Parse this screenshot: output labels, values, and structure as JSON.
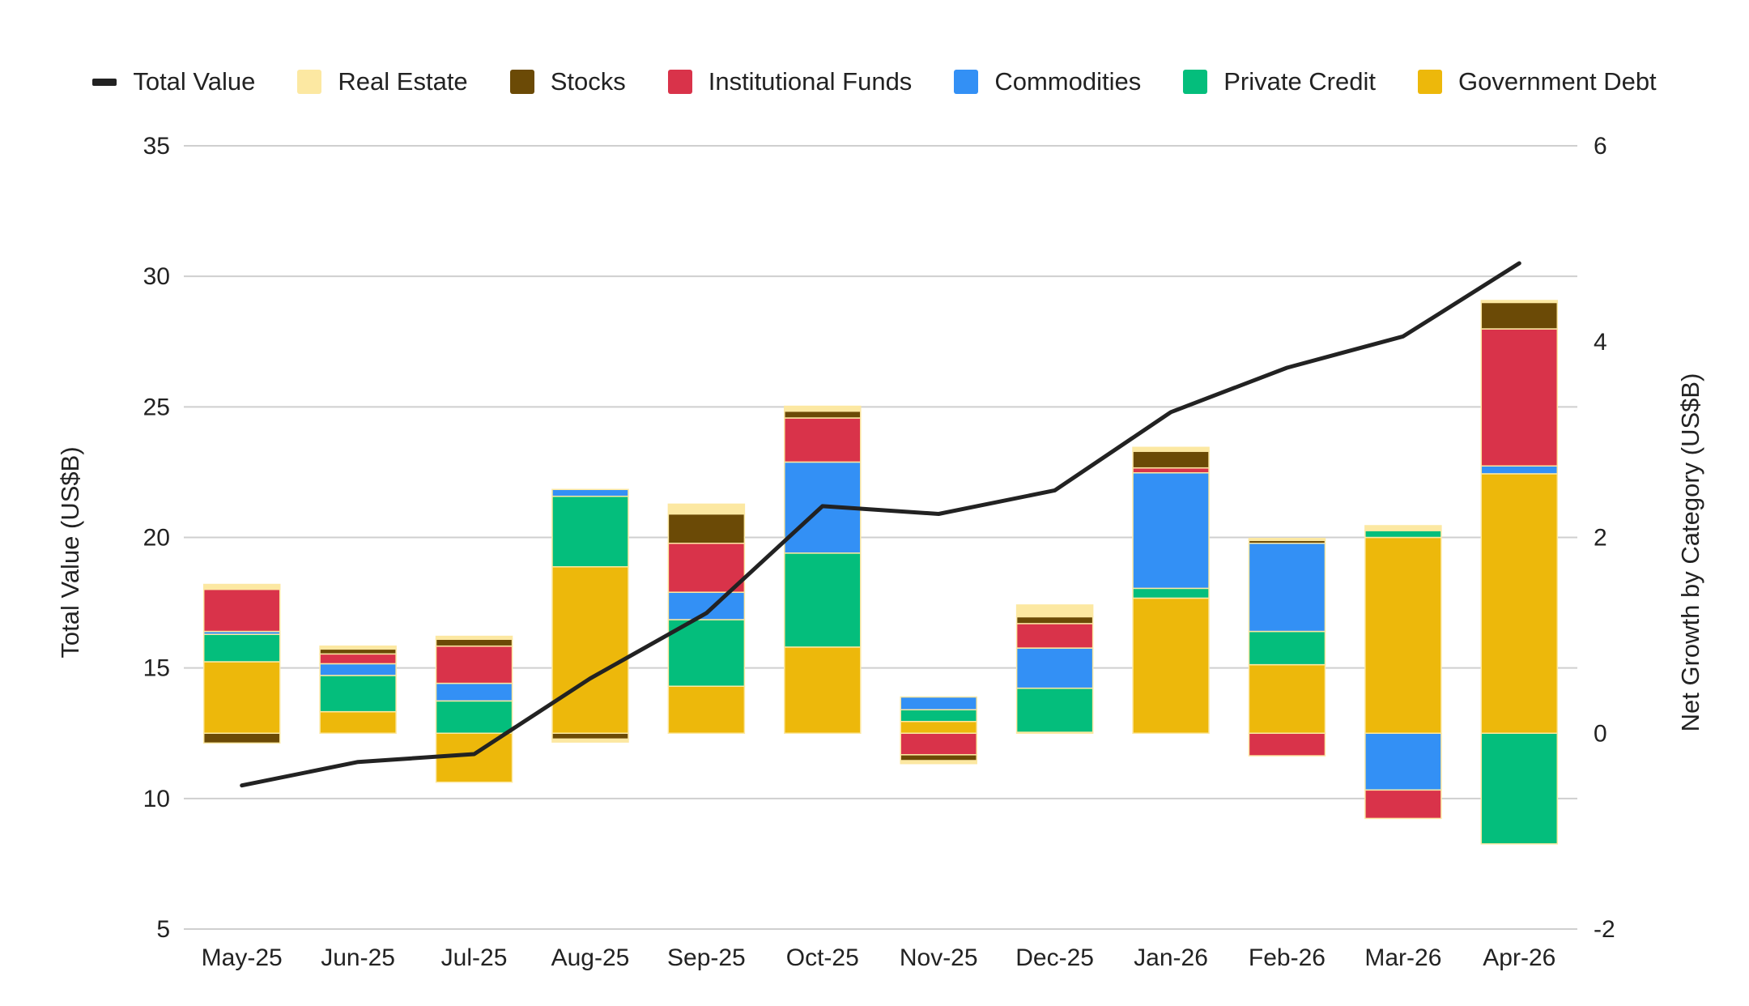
{
  "chart_data": {
    "type": "bar",
    "subtype": "stacked-bar-with-line-dual-axis",
    "categories": [
      "May-25",
      "Jun-25",
      "Jul-25",
      "Aug-25",
      "Sep-25",
      "Oct-25",
      "Nov-25",
      "Dec-25",
      "Jan-26",
      "Feb-26",
      "Mar-26",
      "Apr-26"
    ],
    "legend_order": [
      "Total Value",
      "Real Estate",
      "Stocks",
      "Institutional Funds",
      "Commodities",
      "Private Credit",
      "Government Debt"
    ],
    "legend_position": "top",
    "left_axis": {
      "label": "Total Value (US$B)",
      "range": [
        5,
        35
      ],
      "ticks": [
        "5",
        "10",
        "15",
        "20",
        "25",
        "30",
        "35"
      ]
    },
    "right_axis": {
      "label": "Net Growth by Category (US$B)",
      "range": [
        -2,
        6
      ],
      "ticks": [
        "-2",
        "0",
        "2",
        "4",
        "6"
      ]
    },
    "grid": true,
    "line_series": {
      "name": "Total Value",
      "axis": "left",
      "color": "#222222",
      "values": [
        10.5,
        11.4,
        11.7,
        14.6,
        17.1,
        21.2,
        20.9,
        21.8,
        24.8,
        26.5,
        27.7,
        30.5
      ]
    },
    "stack_order": [
      "Government Debt",
      "Private Credit",
      "Commodities",
      "Institutional Funds",
      "Stocks",
      "Real Estate"
    ],
    "series": [
      {
        "name": "Real Estate",
        "axis": "right",
        "color": "#FCE8A2",
        "values": [
          0.05,
          0.03,
          0.03,
          -0.03,
          0.1,
          0.05,
          -0.03,
          0.12,
          0.04,
          0.02,
          0.05,
          0.02
        ]
      },
      {
        "name": "Stocks",
        "axis": "right",
        "color": "#6B4A06",
        "values": [
          -0.1,
          0.05,
          0.07,
          -0.06,
          0.3,
          0.07,
          -0.06,
          0.07,
          0.17,
          0.03,
          0.0,
          0.27
        ]
      },
      {
        "name": "Institutional Funds",
        "axis": "right",
        "color": "#D9334A",
        "values": [
          0.43,
          0.1,
          0.38,
          0.0,
          0.5,
          0.45,
          -0.22,
          0.25,
          0.05,
          -0.23,
          -0.29,
          1.4
        ]
      },
      {
        "name": "Commodities",
        "axis": "right",
        "color": "#3390F5",
        "values": [
          0.03,
          0.12,
          0.18,
          0.07,
          0.28,
          0.93,
          0.13,
          0.41,
          1.18,
          0.9,
          -0.58,
          0.08
        ]
      },
      {
        "name": "Private Credit",
        "axis": "right",
        "color": "#04BE7C",
        "values": [
          0.28,
          0.37,
          0.33,
          0.72,
          0.68,
          0.96,
          0.12,
          0.45,
          0.1,
          0.34,
          0.07,
          -1.13
        ]
      },
      {
        "name": "Government Debt",
        "axis": "right",
        "color": "#EDB80B",
        "values": [
          0.73,
          0.22,
          -0.5,
          1.7,
          0.48,
          0.88,
          0.12,
          0.01,
          1.38,
          0.7,
          2.0,
          2.65
        ]
      }
    ]
  }
}
